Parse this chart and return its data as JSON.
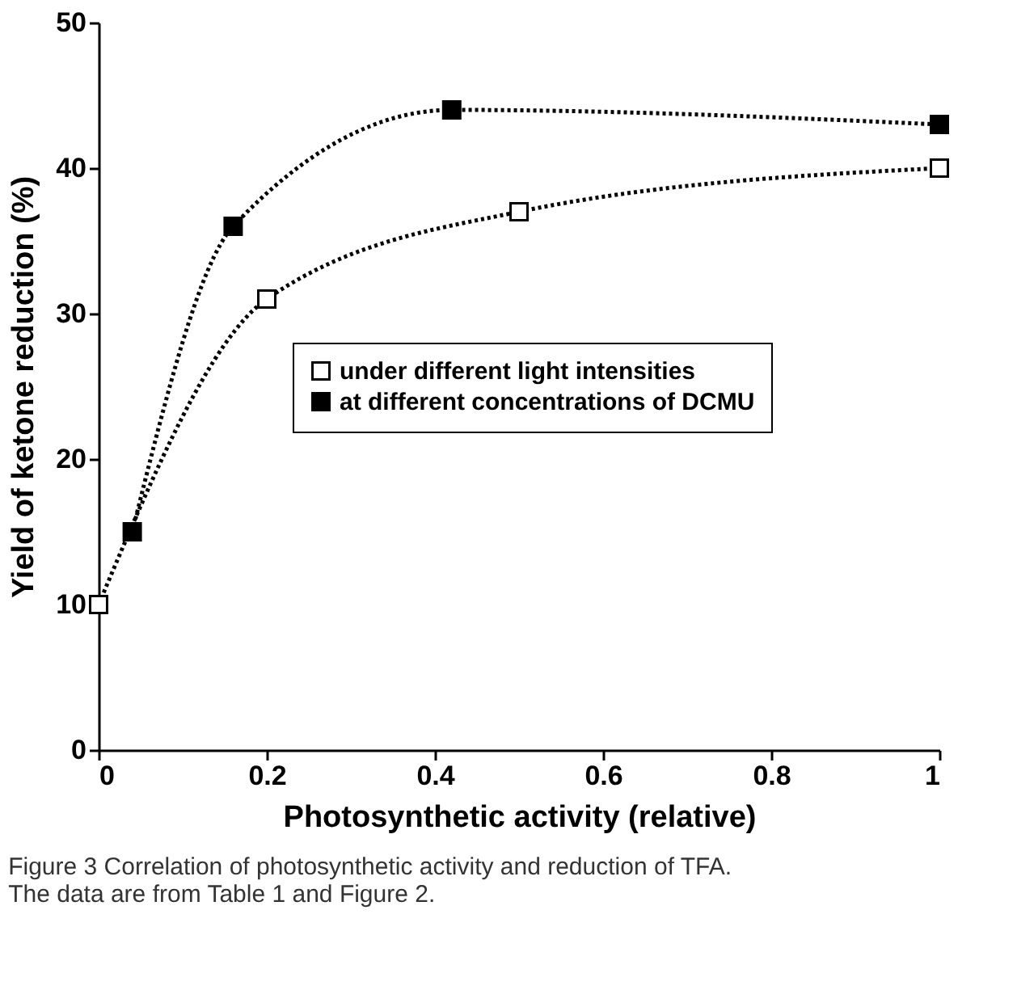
{
  "chart_data": {
    "type": "line",
    "xlabel": "Photosynthetic activity (relative)",
    "ylabel": "Yield of ketone reduction (%)",
    "series": [
      {
        "name": "under different light intensities",
        "color": "#000000",
        "x": [
          0,
          0.2,
          0.5,
          1
        ],
        "values": [
          10,
          31,
          37,
          40
        ]
      },
      {
        "name": "at different concentrations of DCMU",
        "color": "#000000",
        "x": [
          0.04,
          0.16,
          0.42,
          1
        ],
        "values": [
          15,
          36,
          44,
          43
        ]
      }
    ],
    "xlim": [
      0,
      1
    ],
    "xticks": [
      0,
      0.2,
      0.4,
      0.6,
      0.8,
      1
    ],
    "ylim": [
      0,
      50
    ],
    "yticks": [
      0,
      10,
      20,
      30,
      40,
      50
    ],
    "grid": false,
    "legend": "right",
    "marker": "square",
    "line_style": "dotted",
    "annotations": [
      "Figure 3 Correlation of photosynthetic activity and reduction of TFA. The data are from Table 1 and Figure 2."
    ]
  }
}
